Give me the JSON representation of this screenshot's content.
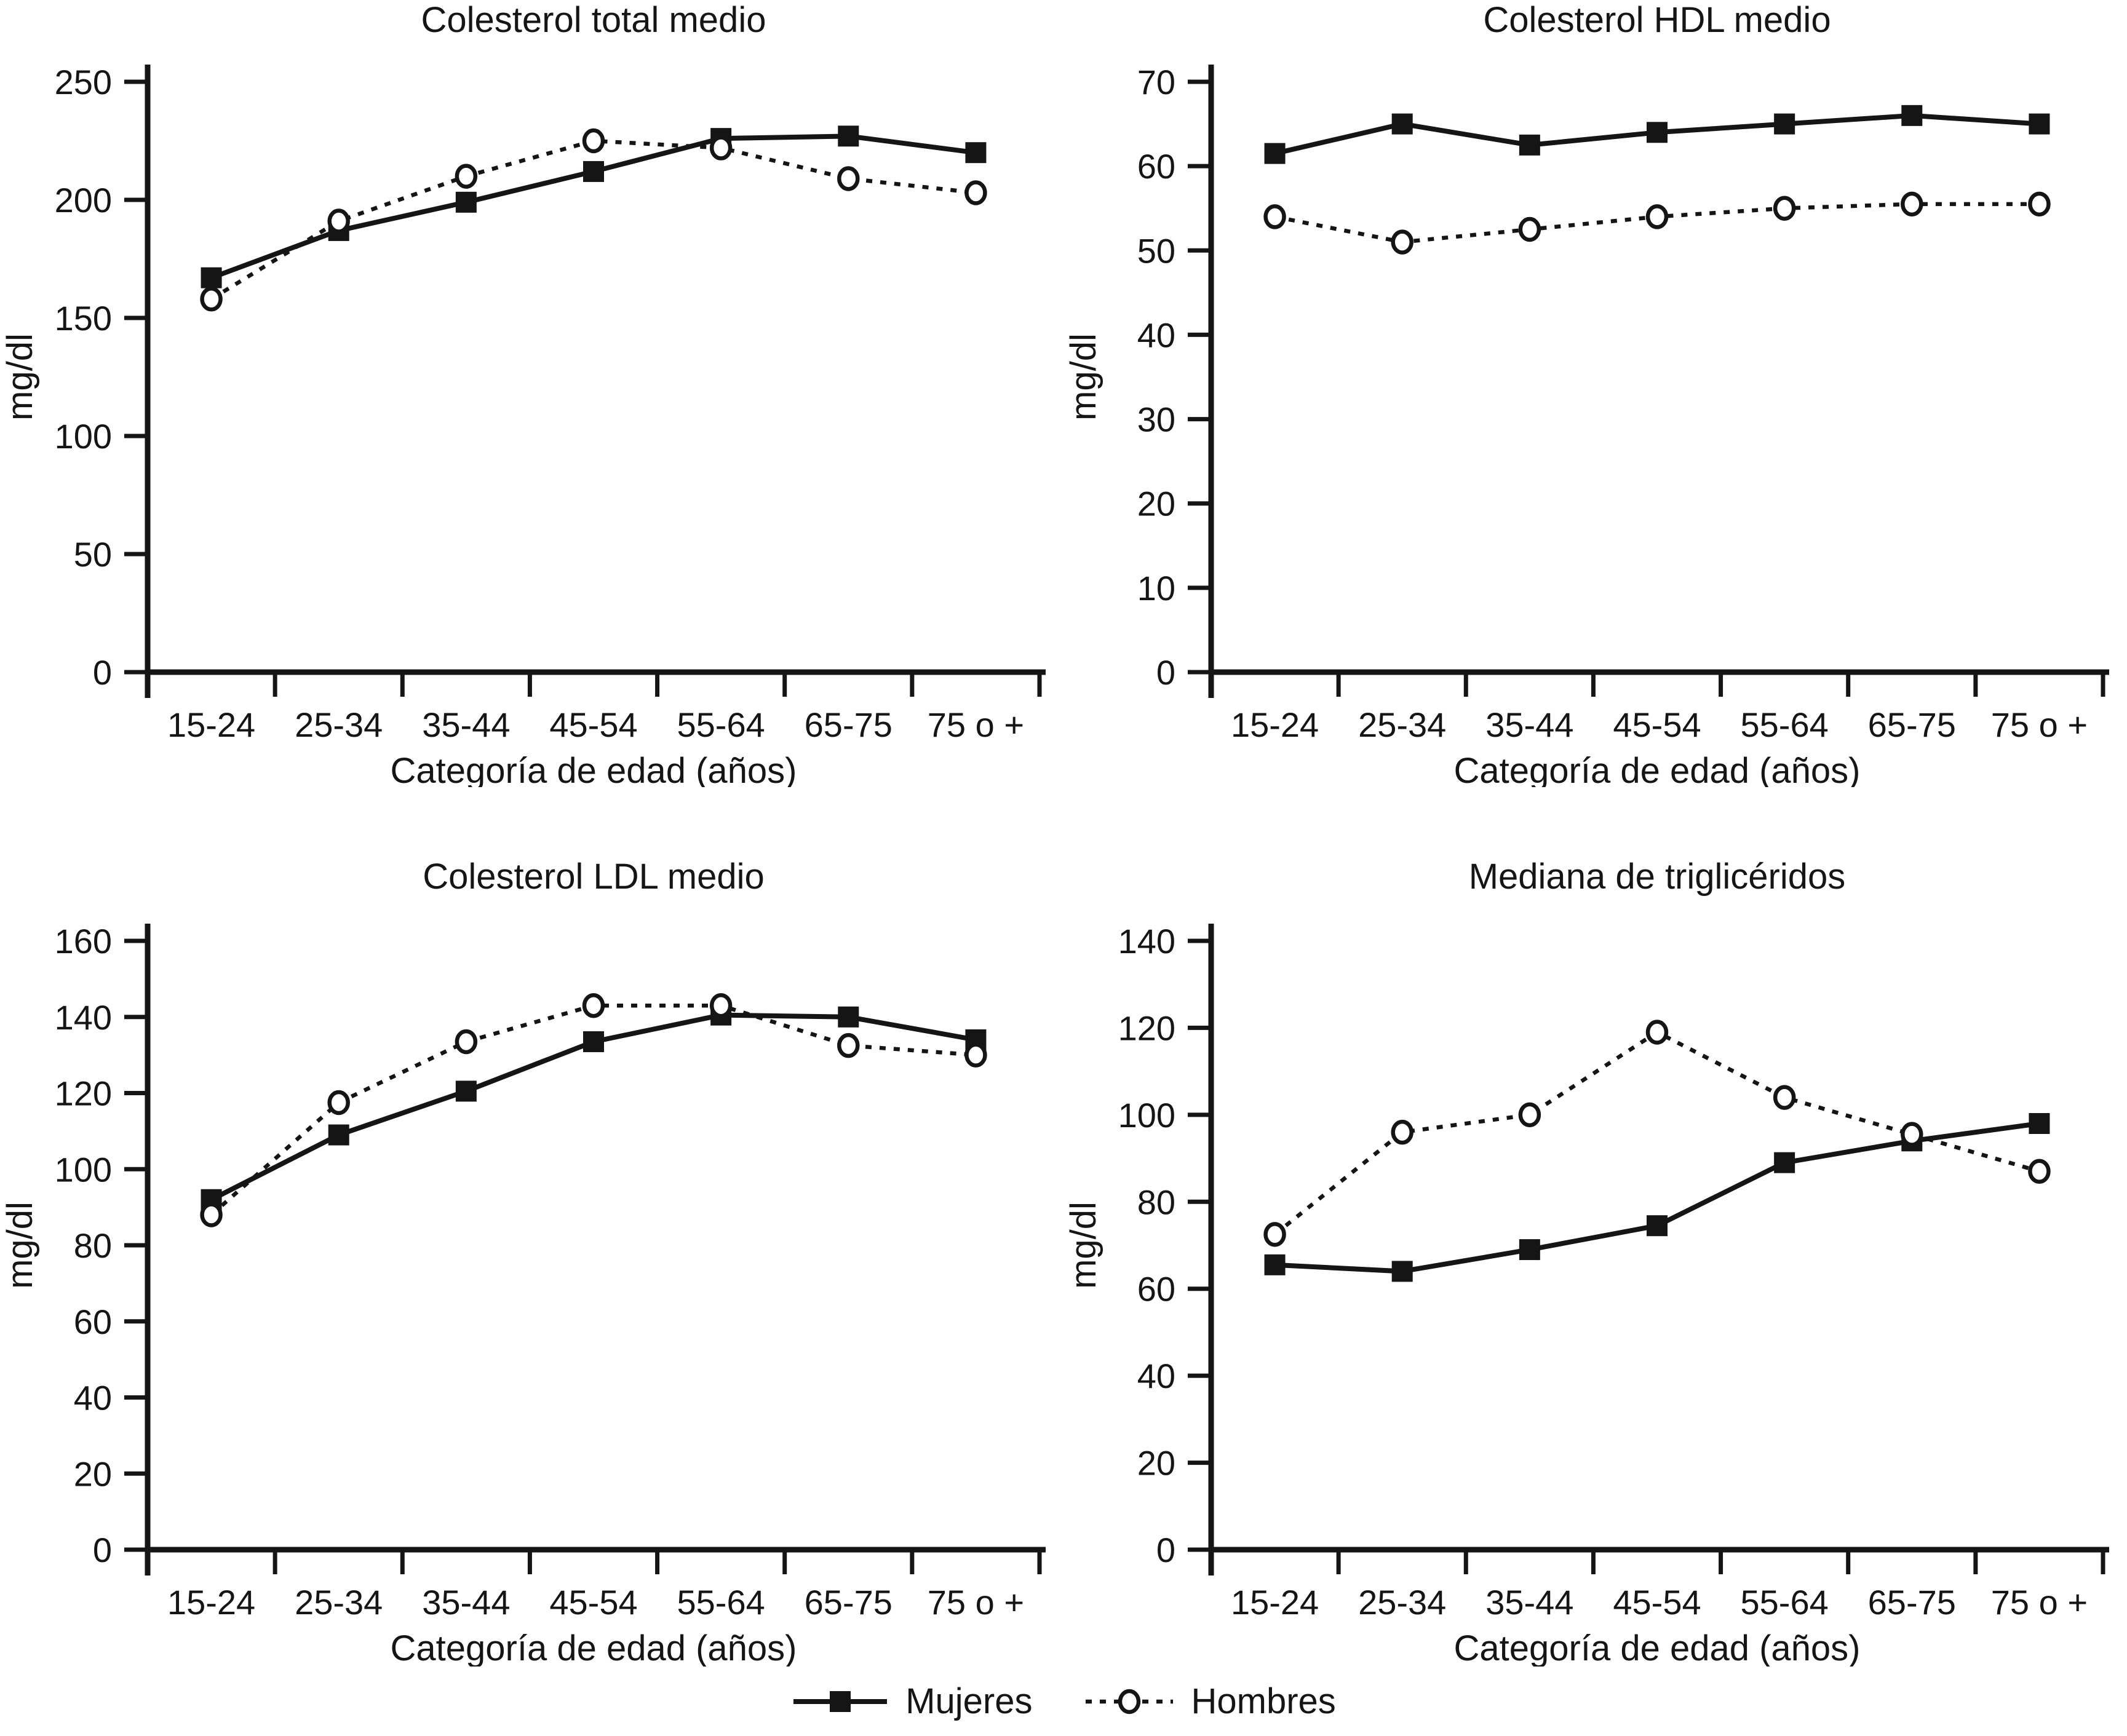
{
  "colors": {
    "ink": "#151515",
    "background": "#ffffff"
  },
  "legend": {
    "items": [
      {
        "label": "Mujeres",
        "marker": "filled-square",
        "line": "solid"
      },
      {
        "label": "Hombres",
        "marker": "open-circle",
        "line": "dotted"
      }
    ]
  },
  "chart_data": [
    {
      "type": "line",
      "title": "Colesterol total medio",
      "xlabel": "Categoría de edad (años)",
      "ylabel": "mg/dl",
      "categories": [
        "15-24",
        "25-34",
        "35-44",
        "45-54",
        "55-64",
        "65-75",
        "75 o +"
      ],
      "ylim": [
        0,
        250
      ],
      "ytick_step": 50,
      "grid": false,
      "legend_position": "bottom",
      "series": [
        {
          "name": "Mujeres",
          "marker": "filled-square",
          "line": "solid",
          "values": [
            167,
            187,
            199,
            212,
            226,
            227,
            220
          ]
        },
        {
          "name": "Hombres",
          "marker": "open-circle",
          "line": "dotted",
          "values": [
            158,
            191,
            210,
            225,
            222,
            209,
            203
          ]
        }
      ]
    },
    {
      "type": "line",
      "title": "Colesterol HDL medio",
      "xlabel": "Categoría de edad (años)",
      "ylabel": "mg/dl",
      "categories": [
        "15-24",
        "25-34",
        "35-44",
        "45-54",
        "55-64",
        "65-75",
        "75 o +"
      ],
      "ylim": [
        0,
        70
      ],
      "ytick_step": 10,
      "grid": false,
      "legend_position": "bottom",
      "series": [
        {
          "name": "Mujeres",
          "marker": "filled-square",
          "line": "solid",
          "values": [
            61.5,
            65,
            62.5,
            64,
            65,
            66,
            65
          ]
        },
        {
          "name": "Hombres",
          "marker": "open-circle",
          "line": "dotted",
          "values": [
            54,
            51,
            52.5,
            54,
            55,
            55.5,
            55.5
          ]
        }
      ]
    },
    {
      "type": "line",
      "title": "Colesterol LDL medio",
      "xlabel": "Categoría de edad (años)",
      "ylabel": "mg/dl",
      "categories": [
        "15-24",
        "25-34",
        "35-44",
        "45-54",
        "55-64",
        "65-75",
        "75 o +"
      ],
      "ylim": [
        0,
        160
      ],
      "ytick_step": 20,
      "grid": false,
      "legend_position": "bottom",
      "series": [
        {
          "name": "Mujeres",
          "marker": "filled-square",
          "line": "solid",
          "values": [
            92,
            109,
            120.5,
            133.5,
            140.5,
            140,
            134
          ]
        },
        {
          "name": "Hombres",
          "marker": "open-circle",
          "line": "dotted",
          "values": [
            88,
            117.5,
            133.5,
            143,
            143,
            132.5,
            130
          ]
        }
      ]
    },
    {
      "type": "line",
      "title": "Mediana de triglicéridos",
      "xlabel": "Categoría de edad (años)",
      "ylabel": "mg/dl",
      "categories": [
        "15-24",
        "25-34",
        "35-44",
        "45-54",
        "55-64",
        "65-75",
        "75 o +"
      ],
      "ylim": [
        0,
        140
      ],
      "ytick_step": 20,
      "grid": false,
      "legend_position": "bottom",
      "series": [
        {
          "name": "Mujeres",
          "marker": "filled-square",
          "line": "solid",
          "values": [
            65.5,
            64,
            69,
            74.5,
            89,
            94,
            98
          ]
        },
        {
          "name": "Hombres",
          "marker": "open-circle",
          "line": "dotted",
          "values": [
            72.5,
            96,
            100,
            119,
            104,
            95.5,
            87
          ]
        }
      ]
    }
  ]
}
